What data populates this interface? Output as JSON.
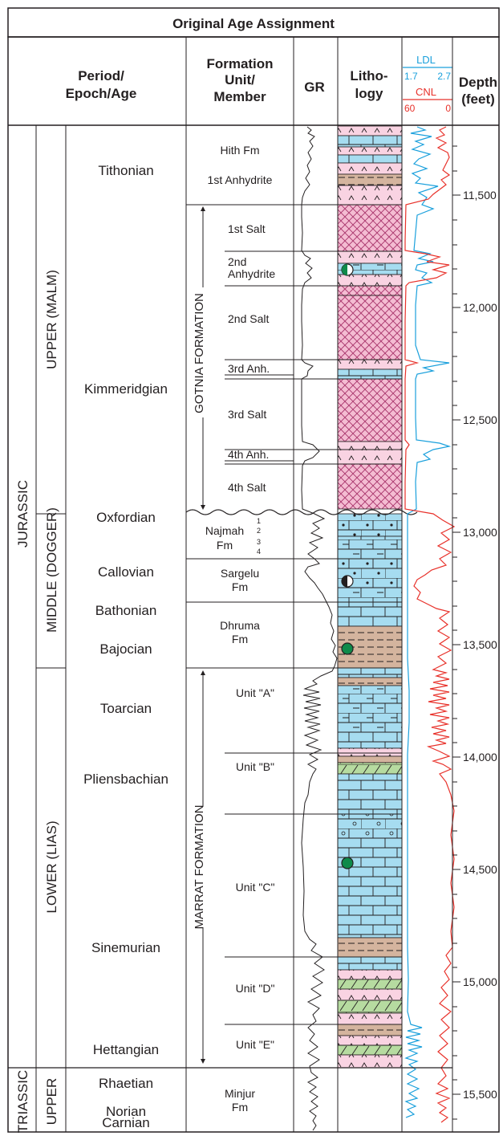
{
  "title": "Original Age Assignment",
  "headers": {
    "period": [
      "Period/",
      "Epoch/Age"
    ],
    "formation": [
      "Formation",
      "Unit/",
      "Member"
    ],
    "gr": "GR",
    "lithology": [
      "Litho-",
      "logy"
    ],
    "ldl": "LDL",
    "ldl_min": "1.7",
    "ldl_max": "2.7",
    "cnl": "CNL",
    "cnl_min": "60",
    "cnl_max": "0",
    "depth": [
      "Depth",
      "(feet)"
    ]
  },
  "periods": {
    "jurassic": "JURASSIC",
    "triassic": "TRIASSIC"
  },
  "epochs": {
    "upper_malm": "UPPER (MALM)",
    "middle_dogger": "MIDDLE (DOGGER)",
    "lower_lias": "LOWER (LIAS)",
    "upper_triassic": "UPPER"
  },
  "ages": {
    "tithonian": "Tithonian",
    "kimmeridgian": "Kimmeridgian",
    "oxfordian": "Oxfordian",
    "callovian": "Callovian",
    "bathonian": "Bathonian",
    "bajocian": "Bajocian",
    "toarcian": "Toarcian",
    "pliensbachian": "Pliensbachian",
    "sinemurian": "Sinemurian",
    "hettangian": "Hettangian",
    "rhaetian": "Rhaetian",
    "norian": "Norian",
    "carnian": "Carnian"
  },
  "formations": {
    "hith": "Hith Fm",
    "first_anhydrite": "1st Anhydrite",
    "gotnia": "GOTNIA FORMATION",
    "first_salt": "1st Salt",
    "second_anhydrite": [
      "2nd",
      "Anhydrite"
    ],
    "second_salt": "2nd Salt",
    "third_anh": "3rd Anh.",
    "third_salt": "3rd Salt",
    "fourth_anh": "4th Anh.",
    "fourth_salt": "4th Salt",
    "najmah": [
      "Najmah",
      "Fm"
    ],
    "najmah_units": [
      "1",
      "2",
      "3",
      "4"
    ],
    "sargelu": [
      "Sargelu",
      "Fm"
    ],
    "dhruma": [
      "Dhruma",
      "Fm"
    ],
    "marrat": "MARRAT FORMATION",
    "unit_a": "Unit \"A\"",
    "unit_b": "Unit \"B\"",
    "unit_c": "Unit \"C\"",
    "unit_d": "Unit \"D\"",
    "unit_e": "Unit \"E\"",
    "minjur": [
      "Minjur",
      "Fm"
    ]
  },
  "depth_labels": [
    "11,500",
    "12,000",
    "12,500",
    "13,000",
    "13,500",
    "14,000",
    "14,500",
    "15,000",
    "15,500"
  ],
  "colors": {
    "anhydrite": "#f9d3e2",
    "limestone": "#a6dcf0",
    "shale": "#d4b49e",
    "dolomite": "#b6dba0",
    "salt_hatch": "#a8336a",
    "ldl": "#1aa0dc",
    "cnl": "#e8312a",
    "show_green": "#0f8a4a"
  }
}
